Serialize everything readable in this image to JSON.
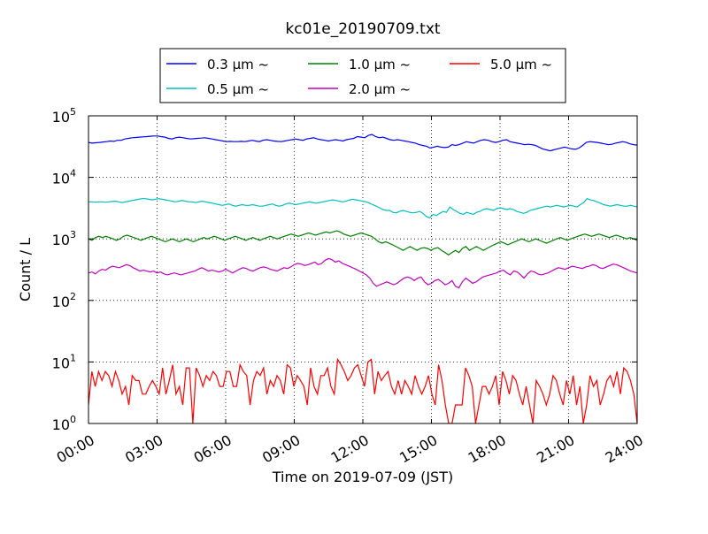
{
  "chart_data": {
    "type": "line",
    "title": "kc01e_20190709.txt",
    "xlabel": "Time on 2019-07-09 (JST)",
    "ylabel": "Count / L",
    "x_ticks": [
      "00:00",
      "03:00",
      "06:00",
      "09:00",
      "12:00",
      "15:00",
      "18:00",
      "21:00",
      "24:00"
    ],
    "x_range_hours": [
      0,
      24
    ],
    "y_scale": "log",
    "ylim": [
      1,
      100000
    ],
    "y_ticks": [
      {
        "base": "10",
        "exp": "0"
      },
      {
        "base": "10",
        "exp": "1"
      },
      {
        "base": "10",
        "exp": "2"
      },
      {
        "base": "10",
        "exp": "3"
      },
      {
        "base": "10",
        "exp": "4"
      },
      {
        "base": "10",
        "exp": "5"
      }
    ],
    "grid": true,
    "legend_position": "top-center",
    "sample_interval_hours": 0.16,
    "series": [
      {
        "name": "0.3 μm ~",
        "color": "#0000ff",
        "values": [
          37000,
          36000,
          36500,
          37000,
          37500,
          38000,
          39000,
          38500,
          40000,
          40000,
          42000,
          43000,
          44000,
          44500,
          45000,
          45500,
          46000,
          46500,
          47000,
          47000,
          46000,
          45000,
          43000,
          42000,
          44000,
          45000,
          44000,
          43000,
          42000,
          42500,
          43000,
          43500,
          44000,
          43000,
          42000,
          41000,
          40000,
          39000,
          38000,
          38500,
          38000,
          38000,
          38500,
          38000,
          39000,
          40000,
          39000,
          38000,
          40000,
          41000,
          40000,
          39000,
          38500,
          38000,
          39000,
          40000,
          41000,
          42000,
          41000,
          40000,
          42000,
          43000,
          44000,
          42000,
          41000,
          40000,
          39000,
          40000,
          41000,
          40000,
          39000,
          41000,
          42000,
          43000,
          46000,
          45000,
          44000,
          48000,
          50000,
          46000,
          44000,
          45000,
          43000,
          41000,
          40000,
          41000,
          40000,
          39000,
          38000,
          37000,
          36000,
          34000,
          33000,
          32000,
          30000,
          31000,
          32000,
          31000,
          30500,
          31000,
          34000,
          33000,
          34000,
          36000,
          38000,
          37000,
          36000,
          38000,
          40000,
          41000,
          40000,
          38000,
          37000,
          38000,
          40000,
          41000,
          38000,
          37000,
          36000,
          35000,
          34000,
          34500,
          34000,
          33000,
          31000,
          29000,
          28000,
          27000,
          28000,
          29000,
          30000,
          31000,
          30000,
          29000,
          28500,
          30000,
          33000,
          37000,
          38000,
          37500,
          37000,
          36000,
          35000,
          34000,
          34500,
          36000,
          37000,
          38000,
          37000,
          35000,
          34000,
          33500
        ]
      },
      {
        "name": "0.5 μm ~",
        "color": "#00bfbf",
        "values": [
          4000,
          4000,
          3950,
          4000,
          4000,
          3950,
          4000,
          4050,
          4100,
          4000,
          3900,
          4000,
          4100,
          4200,
          4300,
          4400,
          4500,
          4500,
          4400,
          4300,
          4400,
          4500,
          4400,
          4300,
          4200,
          4100,
          4000,
          4100,
          4200,
          4100,
          4000,
          4000,
          3900,
          4000,
          4100,
          4000,
          3900,
          3800,
          3700,
          3600,
          3500,
          3600,
          3700,
          3500,
          3400,
          3500,
          3600,
          3500,
          3500,
          3600,
          3500,
          3400,
          3400,
          3500,
          3600,
          3700,
          3500,
          3400,
          3500,
          3700,
          3800,
          3700,
          3600,
          3700,
          3800,
          3900,
          4000,
          3900,
          3800,
          3900,
          4000,
          4100,
          4200,
          4300,
          4200,
          4100,
          4000,
          4100,
          4300,
          4400,
          4300,
          4200,
          4100,
          4000,
          3800,
          3600,
          3400,
          3200,
          3000,
          2900,
          2900,
          2700,
          2650,
          2800,
          2900,
          2800,
          2700,
          2650,
          2700,
          2800,
          2600,
          2300,
          2200,
          2500,
          2400,
          2600,
          2800,
          2700,
          3300,
          3000,
          2800,
          2600,
          2500,
          2700,
          2600,
          2500,
          2700,
          2800,
          3000,
          3100,
          3000,
          2900,
          3100,
          3200,
          3100,
          3000,
          3100,
          3000,
          2800,
          2700,
          2600,
          2700,
          2900,
          3000,
          3100,
          3200,
          3300,
          3400,
          3300,
          3400,
          3500,
          3400,
          3300,
          3400,
          3500,
          3400,
          3300,
          3600,
          3900,
          4500,
          4300,
          4200,
          4000,
          3800,
          3600,
          3500,
          3400,
          3500,
          3600,
          3500,
          3400,
          3400,
          3500,
          3400,
          3300
        ]
      },
      {
        "name": "1.0 μm ~",
        "color": "#008000",
        "values": [
          1000,
          950,
          1050,
          1100,
          1050,
          1100,
          1050,
          1000,
          950,
          1000,
          1100,
          1150,
          1100,
          1050,
          1000,
          950,
          1000,
          1050,
          1100,
          1050,
          1000,
          950,
          900,
          950,
          1000,
          950,
          900,
          950,
          1000,
          950,
          900,
          950,
          1000,
          1050,
          1000,
          1050,
          1100,
          1050,
          1000,
          950,
          1000,
          1050,
          1100,
          1050,
          1000,
          950,
          1000,
          1050,
          1000,
          950,
          1000,
          1050,
          1100,
          1050,
          1000,
          1050,
          1100,
          1150,
          1200,
          1150,
          1100,
          1150,
          1200,
          1250,
          1200,
          1150,
          1200,
          1250,
          1300,
          1250,
          1300,
          1350,
          1300,
          1200,
          1150,
          1100,
          1150,
          1200,
          1250,
          1200,
          1150,
          1100,
          1000,
          900,
          850,
          900,
          850,
          800,
          750,
          700,
          650,
          700,
          750,
          700,
          650,
          700,
          720,
          700,
          650,
          700,
          720,
          650,
          600,
          550,
          600,
          650,
          600,
          700,
          750,
          650,
          700,
          750,
          700,
          650,
          700,
          750,
          800,
          850,
          900,
          850,
          800,
          850,
          900,
          950,
          1000,
          950,
          900,
          950,
          1000,
          950,
          900,
          850,
          900,
          950,
          1000,
          1050,
          1000,
          950,
          1000,
          1050,
          1100,
          1150,
          1200,
          1150,
          1100,
          1150,
          1200,
          1150,
          1100,
          1050,
          1100,
          1150,
          1100,
          1050,
          1000,
          1050,
          1000,
          950
        ]
      },
      {
        "name": "2.0 μm ~",
        "color": "#bf00bf",
        "values": [
          280,
          290,
          270,
          300,
          320,
          310,
          340,
          360,
          350,
          340,
          360,
          380,
          370,
          340,
          320,
          300,
          310,
          300,
          290,
          300,
          280,
          290,
          270,
          260,
          270,
          280,
          270,
          260,
          270,
          280,
          290,
          300,
          320,
          340,
          320,
          300,
          310,
          300,
          290,
          300,
          320,
          300,
          280,
          300,
          320,
          340,
          330,
          310,
          300,
          320,
          340,
          350,
          340,
          320,
          310,
          300,
          320,
          340,
          330,
          350,
          380,
          400,
          390,
          370,
          380,
          400,
          420,
          380,
          400,
          450,
          480,
          460,
          420,
          440,
          400,
          380,
          360,
          340,
          320,
          300,
          280,
          260,
          230,
          190,
          170,
          180,
          190,
          200,
          190,
          180,
          190,
          210,
          230,
          240,
          230,
          210,
          230,
          240,
          200,
          180,
          190,
          210,
          220,
          200,
          180,
          190,
          210,
          170,
          160,
          200,
          230,
          210,
          190,
          200,
          220,
          240,
          250,
          260,
          270,
          280,
          300,
          310,
          280,
          260,
          300,
          290,
          260,
          230,
          270,
          300,
          290,
          270,
          260,
          270,
          280,
          300,
          320,
          340,
          330,
          320,
          340,
          360,
          350,
          340,
          330,
          350,
          360,
          380,
          370,
          340,
          330,
          350,
          370,
          390,
          380,
          360,
          340,
          320,
          300,
          290,
          280
        ]
      },
      {
        "name": "5.0 μm ~",
        "color": "#ff0000",
        "values": [
          2,
          7,
          4,
          7,
          5,
          7,
          6,
          4,
          7,
          5,
          3,
          4,
          2,
          6,
          5,
          5,
          3,
          3,
          4,
          5,
          4,
          3,
          8,
          3,
          5,
          9,
          3,
          4,
          2,
          8,
          8,
          1,
          8,
          6,
          4,
          6,
          5,
          7,
          6,
          4,
          4,
          7,
          7,
          4,
          4,
          9,
          7,
          6,
          2,
          5,
          7,
          6,
          8,
          3,
          5,
          4,
          6,
          5,
          3,
          9,
          8,
          4,
          6,
          5,
          4,
          2,
          8,
          4,
          3,
          6,
          6,
          8,
          4,
          3,
          11,
          9,
          7,
          5,
          6,
          8,
          9,
          6,
          4,
          10,
          11,
          3,
          7,
          5,
          6,
          7,
          4,
          3,
          5,
          3,
          5,
          4,
          3,
          6,
          4,
          3,
          4,
          6,
          3,
          2,
          9,
          5,
          2,
          1,
          1,
          2,
          2,
          2,
          8,
          6,
          4,
          1,
          2,
          4,
          4,
          3,
          4,
          6,
          2,
          7,
          5,
          3,
          6,
          5,
          3,
          2,
          4,
          2,
          1,
          5,
          4,
          3,
          2,
          3,
          6,
          5,
          3,
          2,
          5,
          3,
          6,
          2,
          4,
          1,
          2,
          6,
          4,
          5,
          2,
          3,
          5,
          6,
          4,
          7,
          3,
          8,
          7,
          5,
          3,
          1
        ]
      }
    ]
  }
}
